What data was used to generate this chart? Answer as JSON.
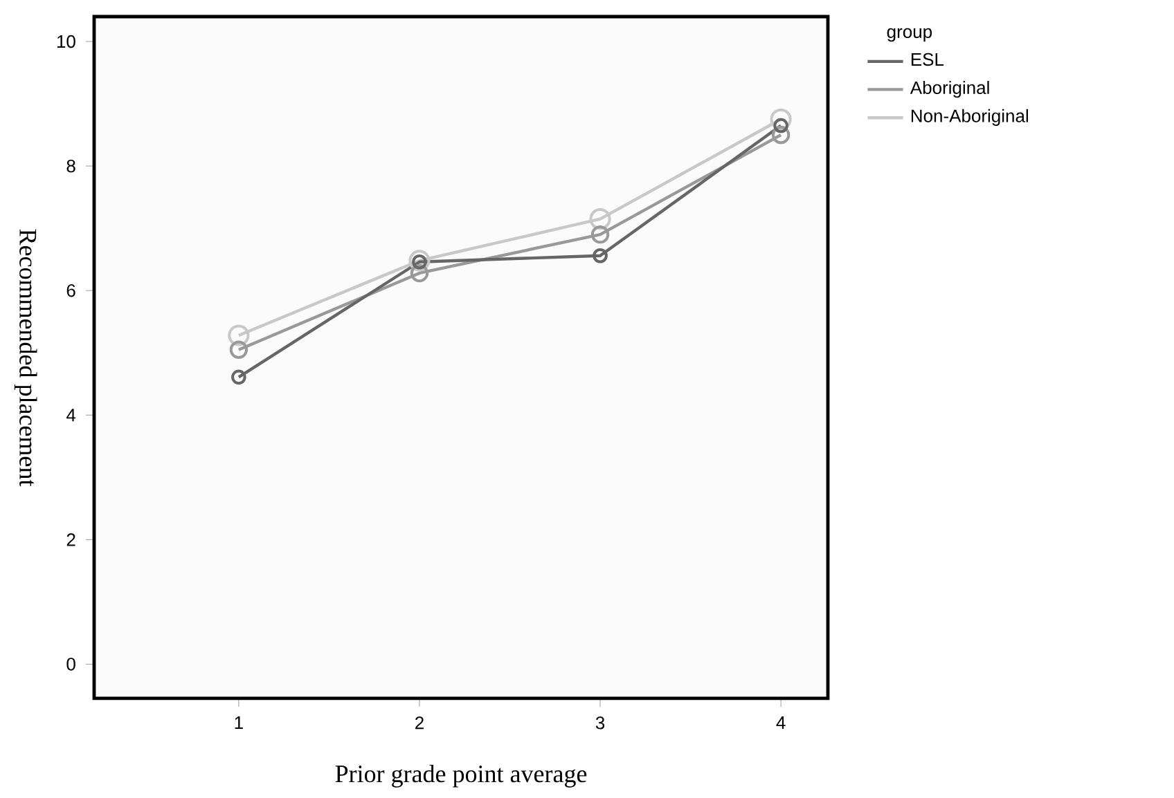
{
  "chart_data": {
    "type": "line",
    "xlabel": "Prior grade point average",
    "ylabel": "Recommended placement",
    "legend_title": "group",
    "x": [
      1,
      2,
      3,
      4
    ],
    "series": [
      {
        "name": "ESL",
        "color": "#666666",
        "values": [
          4.61,
          6.46,
          6.56,
          8.65
        ]
      },
      {
        "name": "Aboriginal",
        "color": "#999999",
        "values": [
          5.05,
          6.28,
          6.9,
          8.5
        ]
      },
      {
        "name": "Non-Aboriginal",
        "color": "#c8c8c8",
        "values": [
          5.28,
          6.48,
          7.15,
          8.75
        ]
      }
    ],
    "xlim": [
      0.2,
      4.26
    ],
    "ylim": [
      -0.55,
      10.4
    ],
    "xticks": [
      1,
      2,
      3,
      4
    ],
    "yticks": [
      0,
      2,
      4,
      6,
      8,
      10
    ],
    "marker": "circle",
    "line_style": "solid",
    "legend": "top right",
    "grid": false
  }
}
